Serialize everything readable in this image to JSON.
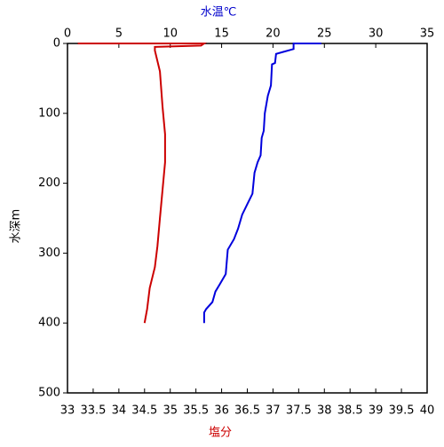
{
  "chart_data": {
    "type": "line",
    "x_label": "塩分",
    "x2_label": "水温℃",
    "y_label": "水深m",
    "x_label_color": "#cc0000",
    "x2_label_color": "#0000cc",
    "xlim": [
      33,
      40
    ],
    "xticks": [
      33,
      33.5,
      34,
      34.5,
      35,
      35.5,
      36,
      36.5,
      37,
      37.5,
      38,
      38.5,
      39,
      39.5,
      40
    ],
    "x2lim": [
      0,
      35
    ],
    "x2ticks": [
      0,
      5,
      10,
      15,
      20,
      25,
      30,
      35
    ],
    "ylim": [
      0,
      500
    ],
    "yticks": [
      0,
      100,
      200,
      300,
      400,
      500
    ],
    "y_inverted": true,
    "series": [
      {
        "color": "#0000dd",
        "axis": "x2",
        "x": [
          24.7,
          22,
          22,
          21,
          20.3,
          20.2,
          19.9,
          19.8,
          19.5,
          19.2,
          19.1,
          18.9,
          18.8,
          18.5,
          18.2,
          18.0,
          17.5,
          17.0,
          16.6,
          16.2,
          15.6,
          15.4,
          14.8,
          14.4,
          14.1,
          13.5,
          13.3,
          13.3
        ],
        "values": [
          0,
          0,
          8,
          12,
          15,
          28,
          30,
          60,
          75,
          100,
          125,
          135,
          160,
          170,
          185,
          215,
          230,
          245,
          265,
          280,
          295,
          330,
          345,
          355,
          370,
          380,
          385,
          400
        ]
      },
      {
        "color": "#cc0000",
        "axis": "x",
        "x": [
          33.2,
          35.66,
          35.6,
          34.7,
          34.7,
          34.8,
          34.85,
          34.9,
          34.9,
          34.85,
          34.8,
          34.75,
          34.7,
          34.6,
          34.55,
          34.5
        ],
        "values": [
          0,
          0,
          3,
          5,
          10,
          40,
          90,
          130,
          170,
          210,
          250,
          290,
          320,
          350,
          380,
          400
        ]
      }
    ]
  }
}
